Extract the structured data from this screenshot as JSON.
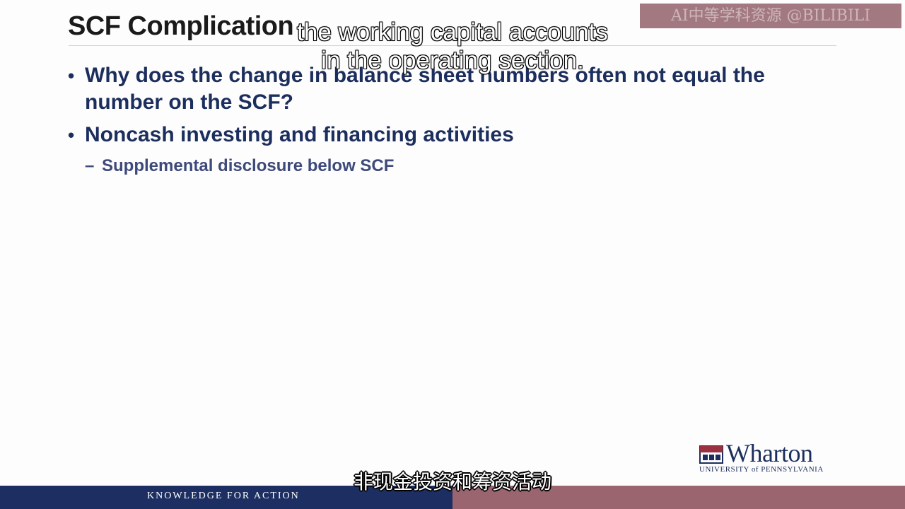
{
  "slide": {
    "title": "SCF Complication",
    "bullets": [
      {
        "text": "Why does the change in balance sheet numbers often not equal the number on the SCF?"
      },
      {
        "text": "Noncash investing and financing activities"
      }
    ],
    "subbullets": [
      {
        "text": "Supplemental disclosure below SCF"
      }
    ]
  },
  "subtitle_en": {
    "line1": "the working capital accounts",
    "line2": "in the operating section."
  },
  "subtitle_cn": "非现金投资和筹资活动",
  "watermark": "AI中等学科资源 @BILIBILI",
  "branding": {
    "logo_name": "Wharton",
    "logo_subtitle": "UNIVERSITY of PENNSYLVANIA",
    "tagline": "KNOWLEDGE FOR ACTION"
  },
  "colors": {
    "navy": "#1d2f62",
    "maroon": "#9b6570",
    "bullet_text": "#1c2e5e"
  }
}
